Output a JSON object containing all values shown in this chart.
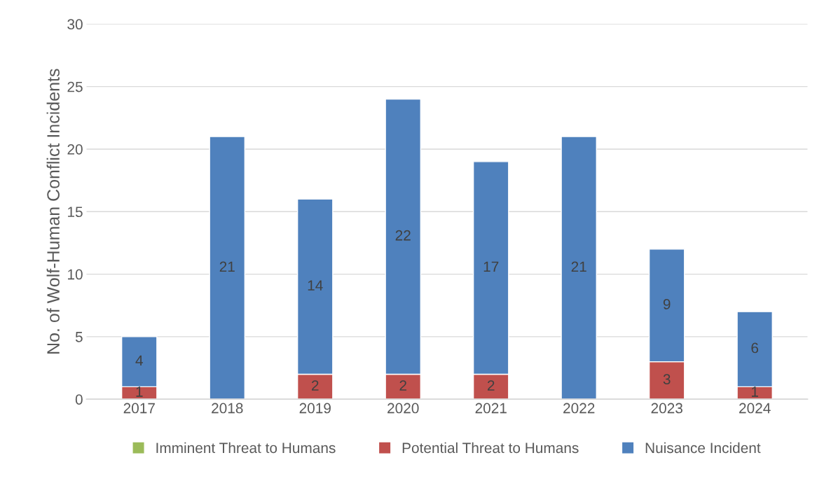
{
  "chart_data": {
    "type": "bar",
    "stacked": true,
    "ylabel": "No. of Wolf-Human Conflict Incidents",
    "categories": [
      "2017",
      "2018",
      "2019",
      "2020",
      "2021",
      "2022",
      "2023",
      "2024"
    ],
    "series": [
      {
        "name": "Imminent Threat to Humans",
        "color": "#9bbb59",
        "values": [
          0,
          0,
          0,
          0,
          0,
          0,
          0,
          0
        ],
        "value_labels": [
          null,
          null,
          null,
          null,
          null,
          null,
          null,
          null
        ]
      },
      {
        "name": "Potential Threat to Humans",
        "color": "#c0504d",
        "values": [
          1,
          0,
          2,
          2,
          2,
          0,
          3,
          1
        ],
        "value_labels": [
          "1",
          null,
          "2",
          "2",
          "2",
          null,
          "3",
          "1"
        ]
      },
      {
        "name": "Nuisance Incident",
        "color": "#4f81bd",
        "values": [
          4,
          21,
          14,
          22,
          17,
          21,
          9,
          6
        ],
        "value_labels": [
          "4",
          "21",
          "14",
          "22",
          "17",
          "21",
          "9",
          "6"
        ]
      }
    ],
    "ylim": [
      0,
      30
    ],
    "yticks": [
      0,
      5,
      10,
      15,
      20,
      25,
      30
    ],
    "grid": "y",
    "legend": "bottom"
  }
}
